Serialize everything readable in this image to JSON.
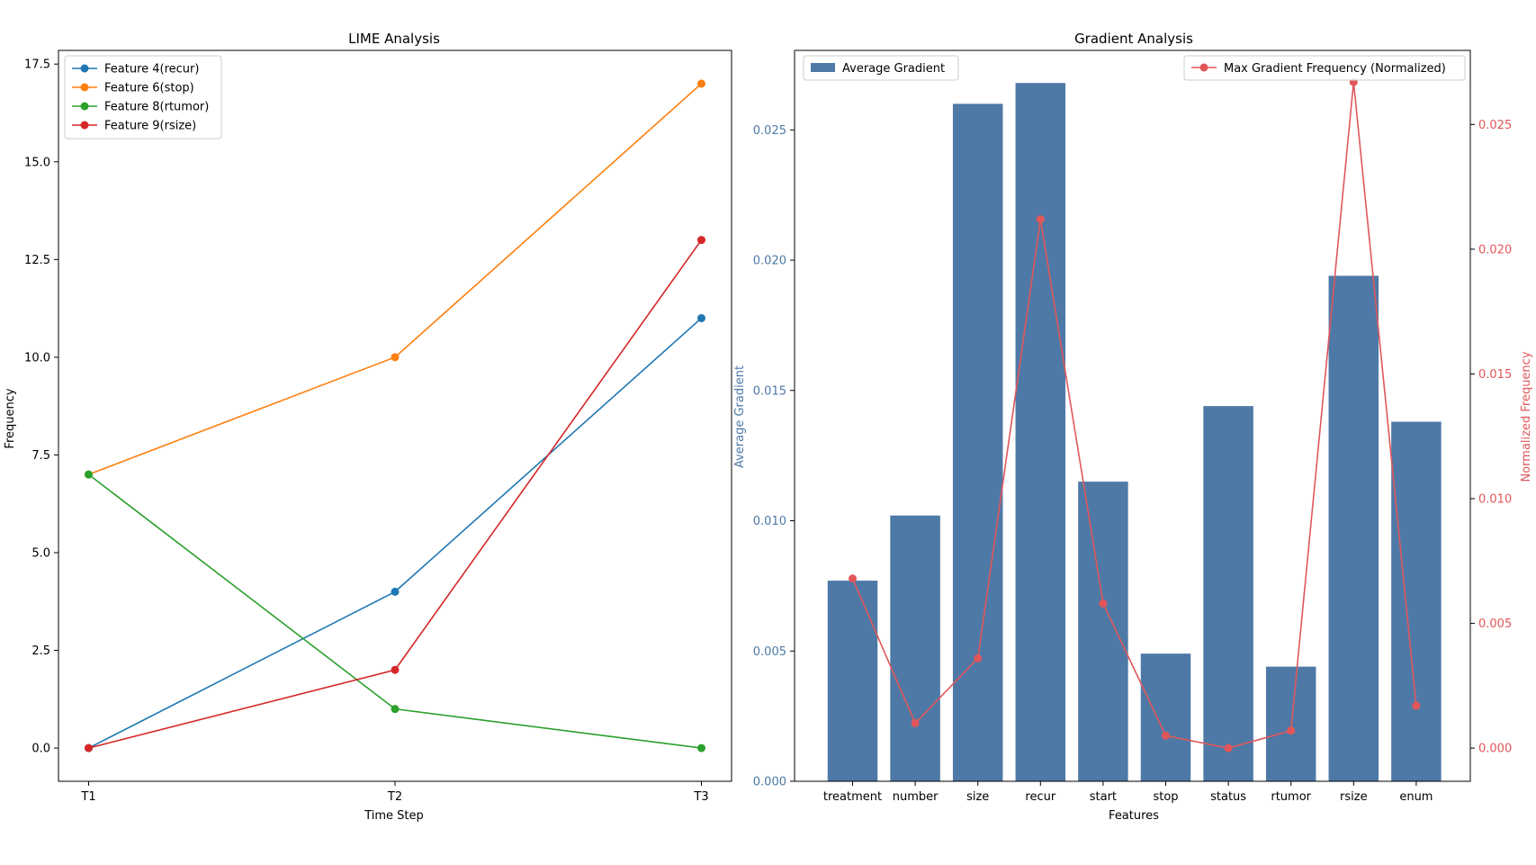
{
  "chart_data": [
    {
      "type": "line",
      "title": "LIME Analysis",
      "xlabel": "Time Step",
      "ylabel": "Frequency",
      "categories": [
        "T1",
        "T2",
        "T3"
      ],
      "ylim": [
        -0.85,
        17.85
      ],
      "yticks": [
        0.0,
        2.5,
        5.0,
        7.5,
        10.0,
        12.5,
        15.0,
        17.5
      ],
      "ytick_labels": [
        "0.0",
        "2.5",
        "5.0",
        "7.5",
        "10.0",
        "12.5",
        "15.0",
        "17.5"
      ],
      "legend_position": "upper-left",
      "series": [
        {
          "name": "Feature 4(recur)",
          "color": "#1f77b4",
          "values": [
            0,
            4,
            11
          ]
        },
        {
          "name": "Feature 6(stop)",
          "color": "#ff7f0e",
          "values": [
            7,
            10,
            17
          ]
        },
        {
          "name": "Feature 8(rtumor)",
          "color": "#2ca02c",
          "values": [
            7,
            1,
            0
          ]
        },
        {
          "name": "Feature 9(rsize)",
          "color": "#d62728",
          "values": [
            0,
            2,
            13
          ]
        }
      ]
    },
    {
      "type": "bar",
      "title": "Gradient Analysis",
      "xlabel": "Features",
      "categories": [
        "treatment",
        "number",
        "size",
        "recur",
        "start",
        "stop",
        "status",
        "rtumor",
        "rsize",
        "enum"
      ],
      "bar_series": {
        "name": "Average Gradient",
        "color": "#4e79a7",
        "axis_label": "Average Gradient",
        "ylim": [
          0,
          0.02805
        ],
        "yticks": [
          0.0,
          0.005,
          0.01,
          0.015,
          0.02,
          0.025
        ],
        "ytick_labels": [
          "0.000",
          "0.005",
          "0.010",
          "0.015",
          "0.020",
          "0.025"
        ],
        "legend_position": "upper-left",
        "values": [
          0.0077,
          0.0102,
          0.026,
          0.0268,
          0.0115,
          0.0049,
          0.0144,
          0.0044,
          0.0194,
          0.0138
        ]
      },
      "line_series": {
        "name": "Max Gradient Frequency (Normalized)",
        "color": "#e15759",
        "axis_label": "Normalized Frequency",
        "ylim": [
          -0.00133,
          0.02797
        ],
        "yticks": [
          0.0,
          0.005,
          0.01,
          0.015,
          0.02,
          0.025
        ],
        "ytick_labels": [
          "0.000",
          "0.005",
          "0.010",
          "0.015",
          "0.020",
          "0.025"
        ],
        "legend_position": "upper-right",
        "values": [
          0.0068,
          0.001,
          0.0036,
          0.0212,
          0.0058,
          0.0005,
          0.0,
          0.0007,
          0.0267,
          0.0017
        ]
      }
    }
  ]
}
